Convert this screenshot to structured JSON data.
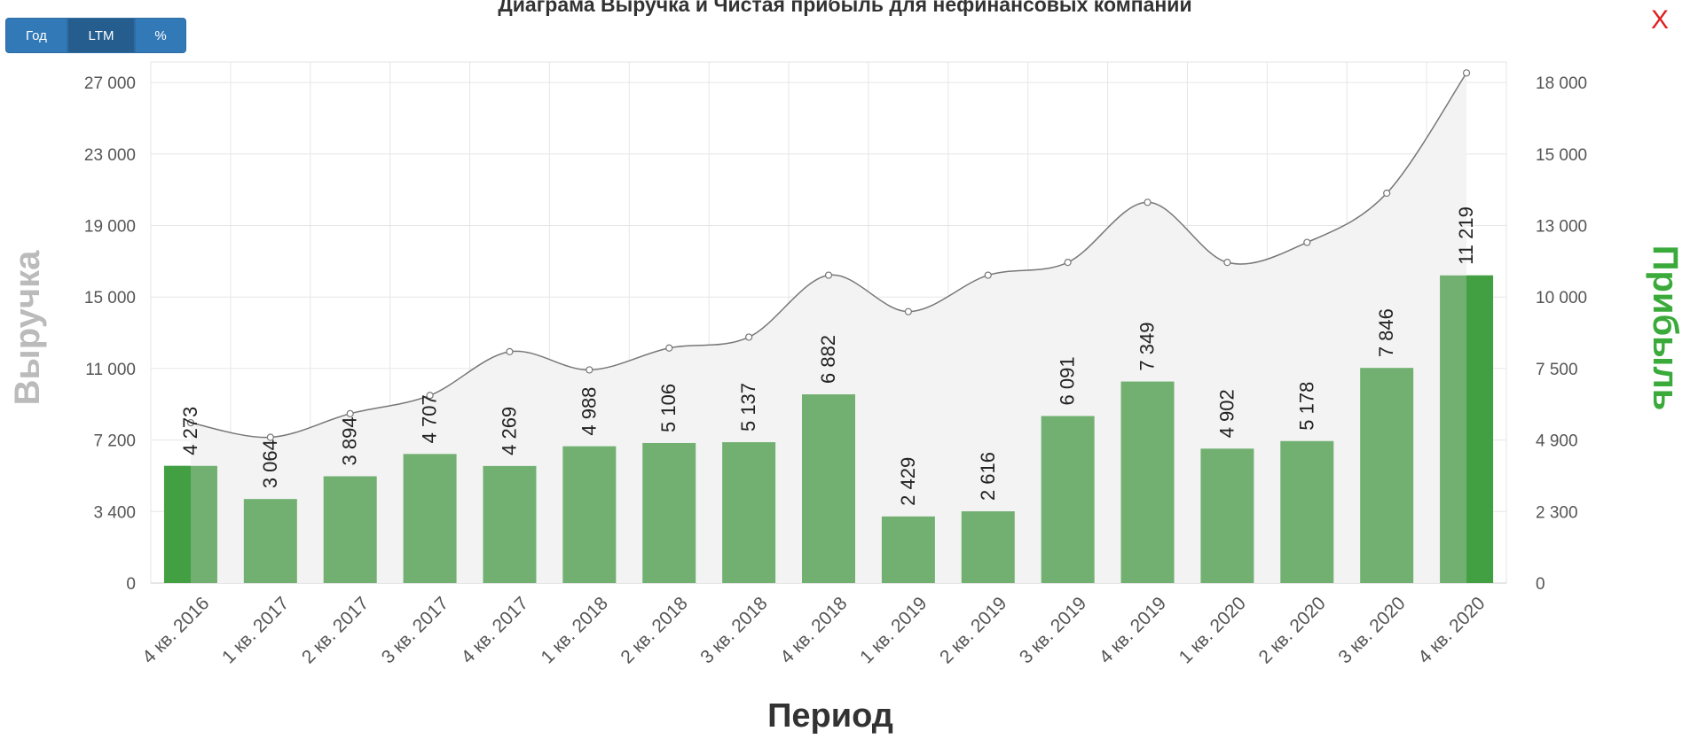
{
  "title": "Диаграма Выручка и Чистая прибыль для нефинансовых компаний",
  "buttons": {
    "year": "Год",
    "ltm": "LTM",
    "percent": "%"
  },
  "close_label": "X",
  "chart_data": {
    "type": "bar",
    "xlabel": "Период",
    "ylabel_left": "Выручка",
    "ylabel_right": "Прибыль",
    "categories": [
      "4 кв. 2016",
      "1 кв. 2017",
      "2 кв. 2017",
      "3 кв. 2017",
      "4 кв. 2017",
      "1 кв. 2018",
      "2 кв. 2018",
      "3 кв. 2018",
      "4 кв. 2018",
      "1 кв. 2019",
      "2 кв. 2019",
      "3 кв. 2019",
      "4 кв. 2019",
      "1 кв. 2020",
      "2 кв. 2020",
      "3 кв. 2020",
      "4 кв. 2020"
    ],
    "left_ticks": [
      "0",
      "3 400",
      "7 200",
      "11 000",
      "15 000",
      "19 000",
      "23 000",
      "27 000"
    ],
    "right_ticks": [
      "0",
      "2 300",
      "4 900",
      "7 500",
      "10 000",
      "13 000",
      "15 000",
      "18 000"
    ],
    "revenue": [
      8800,
      8000,
      9300,
      10300,
      12700,
      11700,
      12900,
      13500,
      16900,
      14900,
      16900,
      17600,
      20900,
      17600,
      18700,
      21400,
      28000
    ],
    "profit": {
      "values": [
        4273,
        3064,
        3894,
        4707,
        4269,
        4988,
        5106,
        5137,
        6882,
        2429,
        2616,
        6091,
        7349,
        4902,
        5178,
        7846,
        11219
      ],
      "labels": [
        "4 273",
        "3 064",
        "3 894",
        "4 707",
        "4 269",
        "4 988",
        "5 106",
        "5 137",
        "6 882",
        "2 429",
        "2 616",
        "6 091",
        "7 349",
        "4 902",
        "5 178",
        "7 846",
        "11 219"
      ]
    },
    "highlighted_bars": [
      0,
      16
    ],
    "colors": {
      "bar": "#72b072",
      "bar_highlight": "#42a042",
      "line": "#777777",
      "area": "#f3f3f3",
      "right_label": "#3aaa3a",
      "left_label": "#bbbbbb"
    },
    "grid": true
  }
}
